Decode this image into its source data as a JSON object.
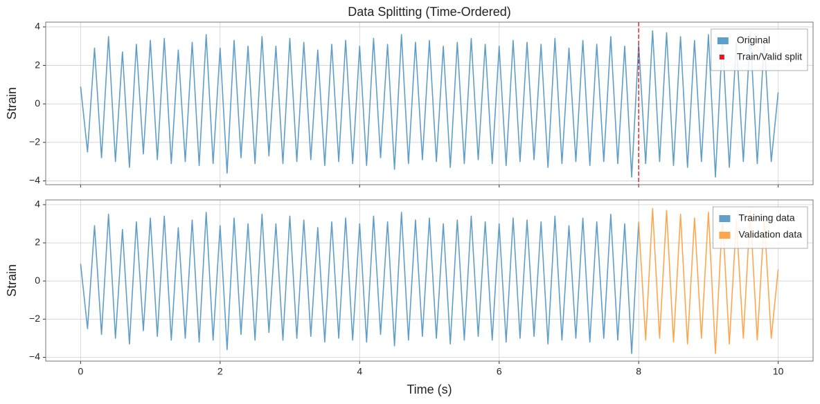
{
  "chart_data": [
    {
      "type": "line",
      "title": "Data Splitting (Time-Ordered)",
      "ylabel": "Strain",
      "series": [
        {
          "name": "Original",
          "color": "#5f9ec9",
          "x": [
            0,
            0.1,
            0.2,
            0.3,
            0.4,
            0.5,
            0.6,
            0.7,
            0.8,
            0.9,
            1,
            1.1,
            1.2,
            1.3,
            1.4,
            1.5,
            1.6,
            1.7,
            1.8,
            1.9,
            2,
            2.1,
            2.2,
            2.3,
            2.4,
            2.5,
            2.6,
            2.7,
            2.8,
            2.9,
            3,
            3.1,
            3.2,
            3.3,
            3.4,
            3.5,
            3.6,
            3.7,
            3.8,
            3.9,
            4,
            4.1,
            4.2,
            4.3,
            4.4,
            4.5,
            4.6,
            4.7,
            4.8,
            4.9,
            5,
            5.1,
            5.2,
            5.3,
            5.4,
            5.5,
            5.6,
            5.7,
            5.8,
            5.9,
            6,
            6.1,
            6.2,
            6.3,
            6.4,
            6.5,
            6.6,
            6.7,
            6.8,
            6.9,
            7,
            7.1,
            7.2,
            7.3,
            7.4,
            7.5,
            7.6,
            7.7,
            7.8,
            7.9,
            8,
            8.1,
            8.2,
            8.3,
            8.4,
            8.5,
            8.6,
            8.7,
            8.8,
            8.9,
            9,
            9.1,
            9.2,
            9.3,
            9.4,
            9.5,
            9.6,
            9.7,
            9.8,
            9.9,
            10
          ],
          "values": [
            0.9,
            -2.5,
            2.9,
            -2.8,
            3.5,
            -3.0,
            2.7,
            -3.3,
            3.1,
            -2.6,
            3.3,
            -2.9,
            3.4,
            -3.1,
            2.8,
            -3.0,
            3.2,
            -3.2,
            3.6,
            -3.1,
            2.9,
            -3.6,
            3.3,
            -2.8,
            3.0,
            -3.1,
            3.5,
            -2.7,
            3.0,
            -3.1,
            3.4,
            -3.0,
            3.2,
            -2.9,
            2.8,
            -3.2,
            3.1,
            -3.0,
            3.3,
            -3.1,
            3.0,
            -3.2,
            3.4,
            -2.8,
            3.1,
            -3.4,
            3.6,
            -3.1,
            3.2,
            -2.9,
            3.3,
            -3.0,
            3.0,
            -3.3,
            3.2,
            -3.1,
            3.4,
            -2.9,
            3.1,
            -3.1,
            3.0,
            -3.2,
            3.3,
            -3.0,
            3.2,
            -2.9,
            3.1,
            -3.3,
            3.4,
            -3.1,
            2.9,
            -3.0,
            3.3,
            -3.2,
            3.1,
            -3.0,
            3.5,
            -3.1,
            3.0,
            -3.8,
            3.1,
            -3.1,
            3.8,
            -3.0,
            3.7,
            -3.2,
            3.5,
            -3.3,
            3.3,
            -3.0,
            3.6,
            -3.8,
            3.4,
            -3.3,
            3.2,
            -3.0,
            3.7,
            -3.1,
            3.3,
            -3.0,
            0.6
          ]
        }
      ],
      "vlines": [
        {
          "name": "Train/Valid split",
          "x": 8,
          "color": "#e41a1c"
        }
      ],
      "xlim": [
        -0.5,
        10.5
      ],
      "ylim": [
        -4.2,
        4.25
      ],
      "xticks": [
        0,
        2,
        4,
        6,
        8,
        10
      ],
      "show_xtick_labels": false,
      "yticks": [
        {
          "value": -4,
          "label": "−4"
        },
        {
          "value": -2,
          "label": "−2"
        },
        0,
        2,
        4
      ],
      "grid": true,
      "legend": "upper right"
    },
    {
      "type": "line",
      "ylabel": "Strain",
      "xlabel": "Time (s)",
      "series": [
        {
          "name": "Training data",
          "color": "#5f9ec9",
          "x": [
            0,
            0.1,
            0.2,
            0.3,
            0.4,
            0.5,
            0.6,
            0.7,
            0.8,
            0.9,
            1,
            1.1,
            1.2,
            1.3,
            1.4,
            1.5,
            1.6,
            1.7,
            1.8,
            1.9,
            2,
            2.1,
            2.2,
            2.3,
            2.4,
            2.5,
            2.6,
            2.7,
            2.8,
            2.9,
            3,
            3.1,
            3.2,
            3.3,
            3.4,
            3.5,
            3.6,
            3.7,
            3.8,
            3.9,
            4,
            4.1,
            4.2,
            4.3,
            4.4,
            4.5,
            4.6,
            4.7,
            4.8,
            4.9,
            5,
            5.1,
            5.2,
            5.3,
            5.4,
            5.5,
            5.6,
            5.7,
            5.8,
            5.9,
            6,
            6.1,
            6.2,
            6.3,
            6.4,
            6.5,
            6.6,
            6.7,
            6.8,
            6.9,
            7,
            7.1,
            7.2,
            7.3,
            7.4,
            7.5,
            7.6,
            7.7,
            7.8,
            7.9,
            8
          ],
          "values": [
            0.9,
            -2.5,
            2.9,
            -2.8,
            3.5,
            -3.0,
            2.7,
            -3.3,
            3.1,
            -2.6,
            3.3,
            -2.9,
            3.4,
            -3.1,
            2.8,
            -3.0,
            3.2,
            -3.2,
            3.6,
            -3.1,
            2.9,
            -3.6,
            3.3,
            -2.8,
            3.0,
            -3.1,
            3.5,
            -2.7,
            3.0,
            -3.1,
            3.4,
            -3.0,
            3.2,
            -2.9,
            2.8,
            -3.2,
            3.1,
            -3.0,
            3.3,
            -3.1,
            3.0,
            -3.2,
            3.4,
            -2.8,
            3.1,
            -3.4,
            3.6,
            -3.1,
            3.2,
            -2.9,
            3.3,
            -3.0,
            3.0,
            -3.3,
            3.2,
            -3.1,
            3.4,
            -2.9,
            3.1,
            -3.1,
            3.0,
            -3.2,
            3.3,
            -3.0,
            3.2,
            -2.9,
            3.1,
            -3.3,
            3.4,
            -3.1,
            2.9,
            -3.0,
            3.3,
            -3.2,
            3.1,
            -3.0,
            3.5,
            -3.1,
            3.0,
            -3.8,
            3.1
          ]
        },
        {
          "name": "Validation data",
          "color": "#ffa64d",
          "x": [
            8,
            8.1,
            8.2,
            8.3,
            8.4,
            8.5,
            8.6,
            8.7,
            8.8,
            8.9,
            9,
            9.1,
            9.2,
            9.3,
            9.4,
            9.5,
            9.6,
            9.7,
            9.8,
            9.9,
            10
          ],
          "values": [
            3.1,
            -3.1,
            3.8,
            -3.0,
            3.7,
            -3.2,
            3.5,
            -3.3,
            3.3,
            -3.0,
            3.6,
            -3.8,
            3.4,
            -3.3,
            3.2,
            -3.0,
            3.7,
            -3.1,
            3.3,
            -3.0,
            0.6
          ]
        }
      ],
      "xlim": [
        -0.5,
        10.5
      ],
      "ylim": [
        -4.2,
        4.25
      ],
      "xticks": [
        0,
        2,
        4,
        6,
        8,
        10
      ],
      "yticks": [
        {
          "value": -4,
          "label": "−4"
        },
        {
          "value": -2,
          "label": "−2"
        },
        0,
        2,
        4
      ],
      "grid": true,
      "legend": "upper right"
    }
  ]
}
